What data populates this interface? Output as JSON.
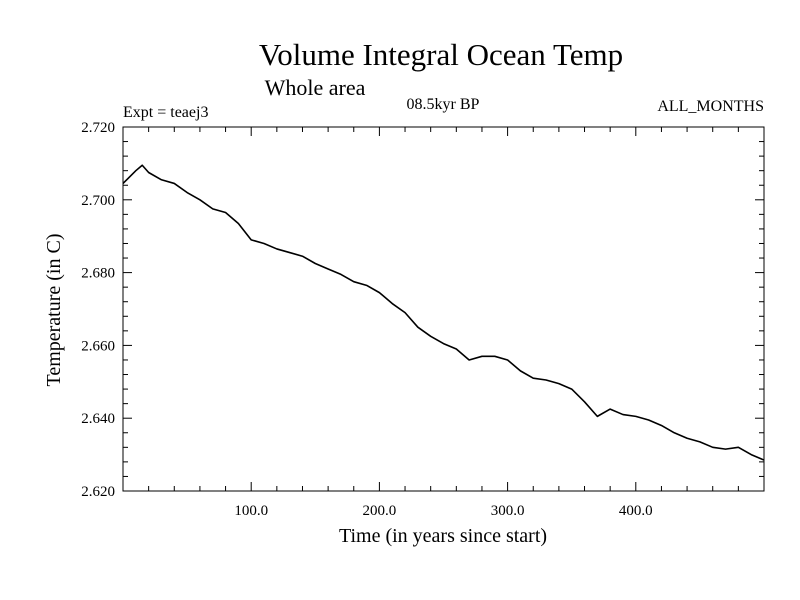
{
  "chart_data": {
    "type": "line",
    "title": "Volume Integral Ocean Temp",
    "subtitle": "Whole area",
    "annotations": {
      "experiment": "Expt = teaej3",
      "period": "08.5kyr BP",
      "months": "ALL_MONTHS"
    },
    "xlabel": "Time (in years since start)",
    "ylabel": "Temperature (in C)",
    "xlim": [
      0,
      500
    ],
    "ylim": [
      2.62,
      2.72
    ],
    "x_ticks": [
      100,
      200,
      300,
      400
    ],
    "x_tick_labels": [
      "100.0",
      "200.0",
      "300.0",
      "400.0"
    ],
    "y_ticks": [
      2.62,
      2.64,
      2.66,
      2.68,
      2.7,
      2.72
    ],
    "y_tick_labels": [
      "2.620",
      "2.640",
      "2.660",
      "2.680",
      "2.700",
      "2.720"
    ],
    "grid": false,
    "series": [
      {
        "name": "Volume Integral Ocean Temp",
        "x": [
          0,
          10,
          15,
          20,
          30,
          40,
          50,
          60,
          70,
          80,
          90,
          100,
          110,
          120,
          130,
          140,
          150,
          160,
          170,
          180,
          190,
          200,
          210,
          220,
          230,
          240,
          250,
          260,
          270,
          280,
          290,
          300,
          310,
          320,
          330,
          340,
          350,
          360,
          370,
          380,
          390,
          400,
          410,
          420,
          430,
          440,
          450,
          460,
          470,
          480,
          490,
          500
        ],
        "values": [
          2.7045,
          2.708,
          2.7095,
          2.7075,
          2.7055,
          2.7045,
          2.702,
          2.7,
          2.6975,
          2.6965,
          2.6935,
          2.689,
          2.688,
          2.6865,
          2.6855,
          2.6845,
          2.6825,
          2.681,
          2.6795,
          2.6775,
          2.6765,
          2.6745,
          2.6715,
          2.669,
          2.665,
          2.6625,
          2.6605,
          2.659,
          2.656,
          2.657,
          2.657,
          2.656,
          2.653,
          2.651,
          2.6505,
          2.6495,
          2.648,
          2.6445,
          2.6405,
          2.6425,
          2.641,
          2.6405,
          2.6395,
          2.638,
          2.636,
          2.6345,
          2.6335,
          2.632,
          2.6315,
          2.632,
          2.63,
          2.6285
        ]
      }
    ]
  }
}
